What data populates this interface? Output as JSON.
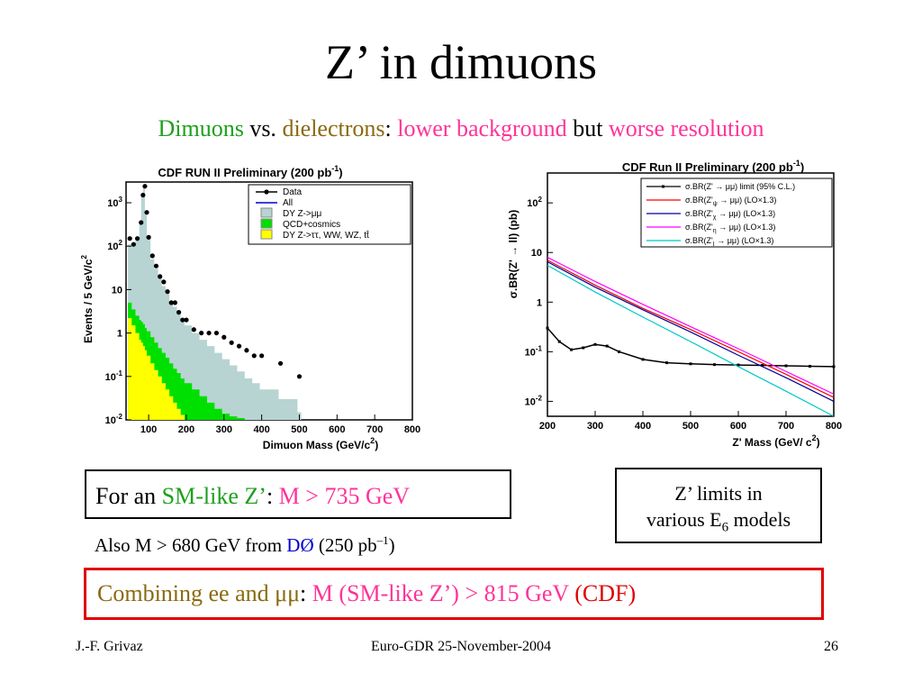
{
  "slide": {
    "title": "Z’ in dimuons",
    "subtitle": {
      "dimuons": "Dimuons",
      "vs": " vs. ",
      "dielectrons": "dielectrons",
      "colon": ": ",
      "lower_background": "lower background",
      "but": " but ",
      "worse_resolution": "worse resolution"
    },
    "box_sm": {
      "for_an": "For an ",
      "sm_like": "SM-like Z’",
      "colon": ": ",
      "limit": "M > 735 GeV"
    },
    "box_models": {
      "line1": "Z’ limits in",
      "line2a": "various E",
      "line2sub": "6",
      "line2b": " models"
    },
    "note": {
      "prefix": "Also M > 680 GeV from ",
      "d0": "DØ",
      "suffix_a": " (250 pb",
      "suffix_sup": "–1",
      "suffix_b": ")"
    },
    "box_combined": {
      "combining": "Combining ee and μμ",
      "colon": ": ",
      "limit": "M (SM-like Z’)  > 815 GeV ",
      "cdf": "(CDF)"
    },
    "footer": {
      "left": "J.-F. Grivaz",
      "center": "Euro-GDR 25-November-2004",
      "right": "26"
    }
  },
  "chart_data": [
    {
      "type": "bar",
      "title": "CDF RUN II Preliminary (200 pb",
      "title_sup": "-1",
      "title_close": ")",
      "xlabel": "Dimuon Mass (GeV/c",
      "xlabel_sup": "2",
      "xlabel_close": ")",
      "ylabel": "Events / 5 GeV/c",
      "ylabel_sup": "2",
      "yscale": "log",
      "xlim": [
        40,
        800
      ],
      "ylim": [
        0.01,
        3000
      ],
      "x_ticks": [
        "100",
        "200",
        "300",
        "400",
        "500",
        "600",
        "700",
        "800"
      ],
      "y_ticks": [
        {
          "base": "10",
          "exp": "-2"
        },
        {
          "base": "10",
          "exp": "-1"
        },
        {
          "base": "1",
          "exp": ""
        },
        {
          "base": "10",
          "exp": ""
        },
        {
          "base": "10",
          "exp": "2"
        },
        {
          "base": "10",
          "exp": "3"
        }
      ],
      "legend": [
        "Data",
        "All",
        "DY Z->μμ",
        "QCD+cosmics",
        "DY Z->ττ, WW, WZ, tt̄"
      ],
      "legend_colors": [
        "#000000",
        "#0000cc",
        "#b7d4d2",
        "#00e000",
        "#ffff00"
      ],
      "x": [
        50,
        60,
        70,
        80,
        85,
        90,
        95,
        100,
        110,
        120,
        130,
        140,
        150,
        160,
        170,
        180,
        190,
        200,
        220,
        240,
        260,
        280,
        300,
        320,
        340,
        360,
        380,
        400,
        450,
        500
      ],
      "series": [
        {
          "name": "Data",
          "values": [
            150,
            110,
            150,
            350,
            1500,
            2400,
            600,
            160,
            60,
            35,
            20,
            15,
            9,
            5,
            5,
            3,
            2,
            2,
            1.2,
            1,
            1,
            1,
            0.8,
            0.6,
            0.5,
            0.4,
            0.3,
            0.3,
            0.2,
            0.1
          ]
        },
        {
          "name": "DY Z->μμ",
          "values": [
            110,
            100,
            140,
            320,
            1400,
            2200,
            550,
            140,
            50,
            30,
            18,
            12,
            8,
            5,
            4,
            3,
            2,
            1.5,
            1,
            0.7,
            0.5,
            0.35,
            0.25,
            0.18,
            0.13,
            0.09,
            0.07,
            0.05,
            0.03,
            0.015
          ]
        },
        {
          "name": "QCD+cosmics",
          "values": [
            5,
            3.5,
            2.5,
            2,
            1.8,
            1.6,
            1.3,
            1.1,
            0.8,
            0.6,
            0.45,
            0.35,
            0.27,
            0.2,
            0.15,
            0.12,
            0.09,
            0.07,
            0.05,
            0.035,
            0.025,
            0.018,
            0.014,
            0.012,
            0.011,
            0.01,
            0.01,
            0.01,
            0.01,
            0.01
          ]
        },
        {
          "name": "DY Z->ττ, WW, WZ, tt̄",
          "values": [
            2.2,
            1.5,
            1,
            0.7,
            0.6,
            0.5,
            0.4,
            0.3,
            0.2,
            0.14,
            0.1,
            0.07,
            0.05,
            0.035,
            0.025,
            0.018,
            0.013,
            0.01,
            0.01,
            0.01,
            0.01,
            0.01,
            0.01,
            0.01,
            0.01,
            0.01,
            0.01,
            0.01,
            0.01,
            0.01
          ]
        }
      ]
    },
    {
      "type": "line",
      "title": "CDF Run II Preliminary (200 pb",
      "title_sup": "-1",
      "title_close": ")",
      "xlabel": "Z' Mass (GeV/ c",
      "xlabel_sup": "2",
      "xlabel_close": ")",
      "ylabel": "σ.BR(Z'  → ll) (pb)",
      "yscale": "log",
      "xlim": [
        200,
        800
      ],
      "ylim": [
        0.005,
        400
      ],
      "x_ticks": [
        "200",
        "300",
        "400",
        "500",
        "600",
        "700",
        "800"
      ],
      "y_ticks": [
        {
          "base": "10",
          "exp": "-2"
        },
        {
          "base": "10",
          "exp": "-1"
        },
        {
          "base": "1",
          "exp": ""
        },
        {
          "base": "10",
          "exp": ""
        },
        {
          "base": "10",
          "exp": "2"
        }
      ],
      "x": [
        200,
        300,
        400,
        500,
        600,
        700,
        800
      ],
      "series": [
        {
          "name": "σ.BR(Z' → μμ) limit (95% C.L.)",
          "color": "#000000",
          "x": [
            200,
            225,
            250,
            275,
            300,
            325,
            350,
            400,
            450,
            500,
            550,
            600,
            650,
            700,
            750,
            800
          ],
          "values": [
            0.3,
            0.16,
            0.11,
            0.12,
            0.14,
            0.13,
            0.1,
            0.07,
            0.06,
            0.057,
            0.055,
            0.054,
            0.053,
            0.052,
            0.051,
            0.05
          ]
        },
        {
          "name": "σ.BR(Z'ψ → μμ) (LO×1.3)",
          "color": "#ff0000",
          "values": [
            7,
            2.2,
            0.75,
            0.28,
            0.1,
            0.035,
            0.012
          ]
        },
        {
          "name": "σ.BR(Z'χ → μμ) (LO×1.3)",
          "color": "#000099",
          "values": [
            6.5,
            2.0,
            0.7,
            0.25,
            0.085,
            0.03,
            0.01
          ]
        },
        {
          "name": "σ.BR(Z'η → μμ) (LO×1.3)",
          "color": "#ff00ff",
          "values": [
            8,
            2.6,
            0.9,
            0.32,
            0.115,
            0.04,
            0.014
          ]
        },
        {
          "name": "σ.BR(Z'I → μμ) (LO×1.3)",
          "color": "#00c8c8",
          "values": [
            5.5,
            1.6,
            0.5,
            0.16,
            0.05,
            0.016,
            0.005
          ]
        }
      ],
      "legend_labels": [
        {
          "main": "σ.BR(Z'  → μμ) limit (95% C.L.)",
          "sub": ""
        },
        {
          "main": "σ.BR(Z'",
          "sub": "ψ",
          "rest": "  → μμ) (LO×1.3)"
        },
        {
          "main": "σ.BR(Z'",
          "sub": "χ",
          "rest": "  → μμ) (LO×1.3)"
        },
        {
          "main": "σ.BR(Z'",
          "sub": "η",
          "rest": "  → μμ) (LO×1.3)"
        },
        {
          "main": "σ.BR(Z'",
          "sub": "I",
          "rest": "  → μμ) (LO×1.3)"
        }
      ]
    }
  ]
}
